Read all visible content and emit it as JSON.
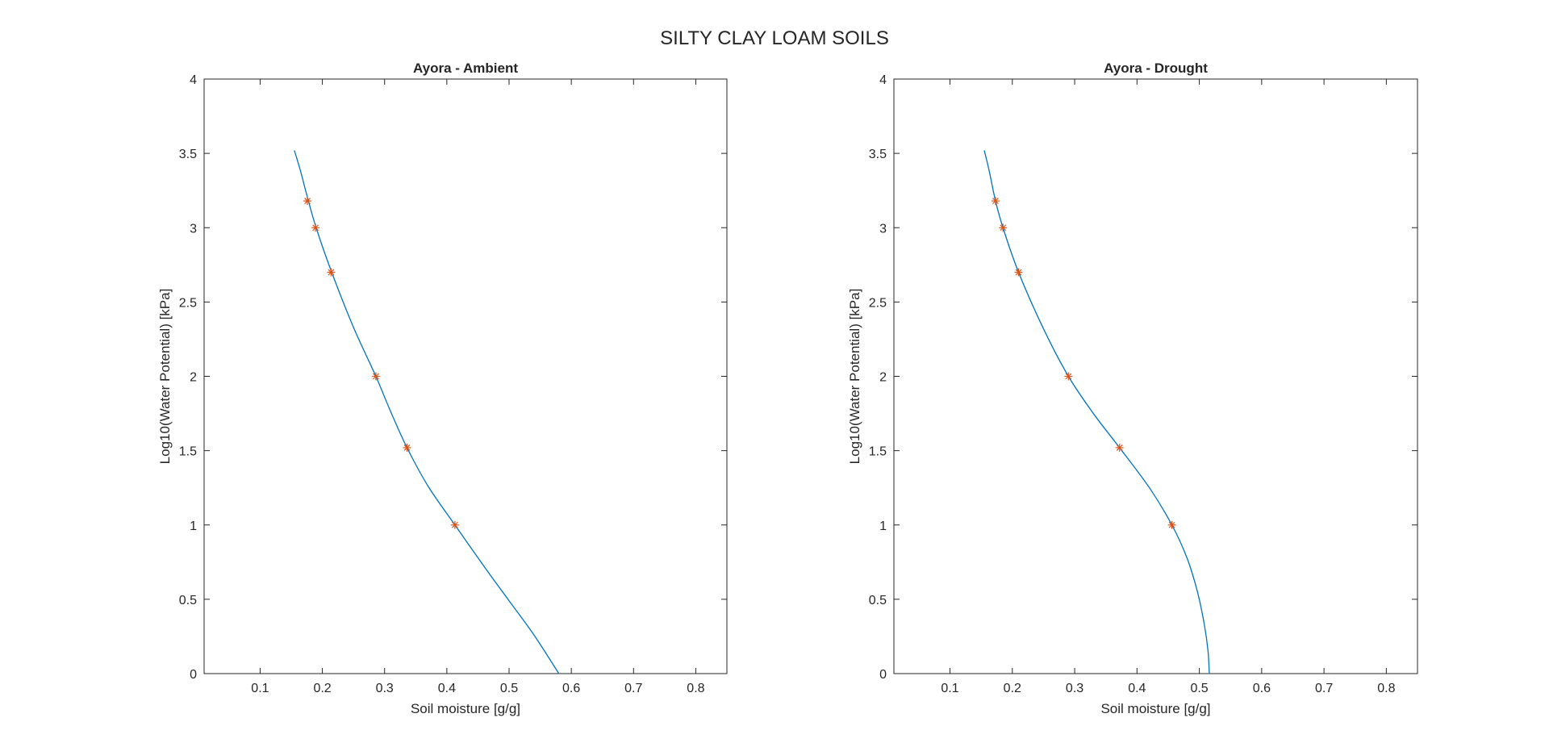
{
  "figure_title": "SILTY CLAY LOAM SOILS",
  "chart_data": [
    {
      "type": "line",
      "title": "Ayora - Ambient",
      "xlabel": "Soil moisture [g/g]",
      "ylabel": "Log10(Water Potential) [kPa]",
      "xlim": [
        0.01,
        0.85
      ],
      "ylim": [
        0,
        4
      ],
      "xticks": [
        "0.1",
        "0.2",
        "0.3",
        "0.4",
        "0.5",
        "0.6",
        "0.7",
        "0.8"
      ],
      "yticks": [
        "0",
        "0.5",
        "1",
        "1.5",
        "2",
        "2.5",
        "3",
        "3.5",
        "4"
      ],
      "grid": false,
      "series": [
        {
          "kind": "fit-curve",
          "color": "#0072BD",
          "points": [
            [
              0.155,
              3.52
            ],
            [
              0.165,
              3.38
            ],
            [
              0.175,
              3.22
            ],
            [
              0.19,
              3.0
            ],
            [
              0.215,
              2.7
            ],
            [
              0.25,
              2.33
            ],
            [
              0.286,
              2.0
            ],
            [
              0.31,
              1.76
            ],
            [
              0.336,
              1.52
            ],
            [
              0.37,
              1.26
            ],
            [
              0.413,
              1.0
            ],
            [
              0.46,
              0.72
            ],
            [
              0.5,
              0.49
            ],
            [
              0.54,
              0.26
            ],
            [
              0.58,
              0.0
            ]
          ]
        },
        {
          "kind": "measured-points",
          "marker": "asterisk",
          "color": "#D95319",
          "points": [
            [
              0.176,
              3.18
            ],
            [
              0.189,
              3.0
            ],
            [
              0.214,
              2.7
            ],
            [
              0.286,
              2.0
            ],
            [
              0.336,
              1.52
            ],
            [
              0.413,
              1.0
            ]
          ]
        }
      ]
    },
    {
      "type": "line",
      "title": "Ayora - Drought",
      "xlabel": "Soil moisture [g/g]",
      "ylabel": "Log10(Water Potential) [kPa]",
      "xlim": [
        0.01,
        0.85
      ],
      "ylim": [
        0,
        4
      ],
      "xticks": [
        "0.1",
        "0.2",
        "0.3",
        "0.4",
        "0.5",
        "0.6",
        "0.7",
        "0.8"
      ],
      "yticks": [
        "0",
        "0.5",
        "1",
        "1.5",
        "2",
        "2.5",
        "3",
        "3.5",
        "4"
      ],
      "grid": false,
      "series": [
        {
          "kind": "fit-curve",
          "color": "#0072BD",
          "points": [
            [
              0.155,
              3.52
            ],
            [
              0.163,
              3.38
            ],
            [
              0.173,
              3.18
            ],
            [
              0.185,
              3.0
            ],
            [
              0.21,
              2.7
            ],
            [
              0.25,
              2.32
            ],
            [
              0.29,
              2.0
            ],
            [
              0.33,
              1.75
            ],
            [
              0.372,
              1.52
            ],
            [
              0.42,
              1.25
            ],
            [
              0.456,
              1.0
            ],
            [
              0.48,
              0.78
            ],
            [
              0.497,
              0.55
            ],
            [
              0.508,
              0.33
            ],
            [
              0.514,
              0.15
            ],
            [
              0.516,
              0.0
            ]
          ]
        },
        {
          "kind": "measured-points",
          "marker": "asterisk",
          "color": "#D95319",
          "points": [
            [
              0.173,
              3.18
            ],
            [
              0.185,
              3.0
            ],
            [
              0.21,
              2.7
            ],
            [
              0.29,
              2.0
            ],
            [
              0.372,
              1.52
            ],
            [
              0.456,
              1.0
            ]
          ]
        }
      ]
    }
  ]
}
